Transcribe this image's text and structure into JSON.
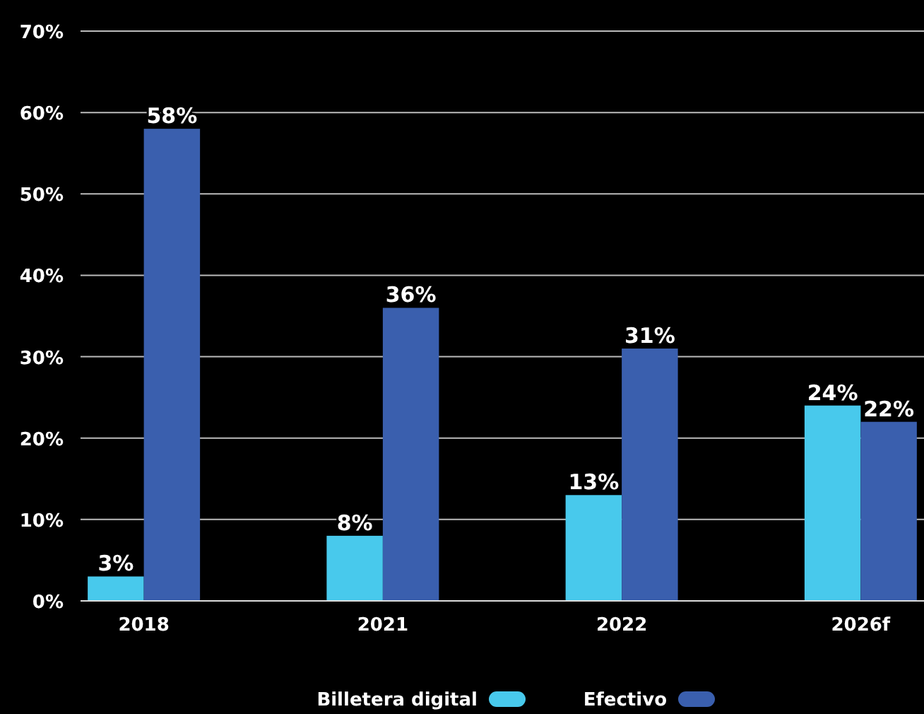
{
  "chart_data": {
    "type": "bar",
    "categories": [
      "2018",
      "2021",
      "2022",
      "2026f"
    ],
    "series": [
      {
        "name": "Billetera digital",
        "color": "#48c9ec",
        "values": [
          3,
          8,
          13,
          24
        ],
        "value_labels": [
          "3%",
          "8%",
          "13%",
          "24%"
        ]
      },
      {
        "name": "Efectivo",
        "color": "#3a5fae",
        "values": [
          58,
          36,
          31,
          22
        ],
        "value_labels": [
          "58%",
          "36%",
          "31%",
          "22%"
        ]
      }
    ],
    "ylim": [
      0,
      70
    ],
    "yticks": [
      {
        "value": 0,
        "label": "0%"
      },
      {
        "value": 10,
        "label": "10%"
      },
      {
        "value": 20,
        "label": "20%"
      },
      {
        "value": 30,
        "label": "30%"
      },
      {
        "value": 40,
        "label": "40%"
      },
      {
        "value": 50,
        "label": "50%"
      },
      {
        "value": 60,
        "label": "60%"
      },
      {
        "value": 70,
        "label": "70%"
      }
    ],
    "grid": "y",
    "legend": "bottom"
  }
}
